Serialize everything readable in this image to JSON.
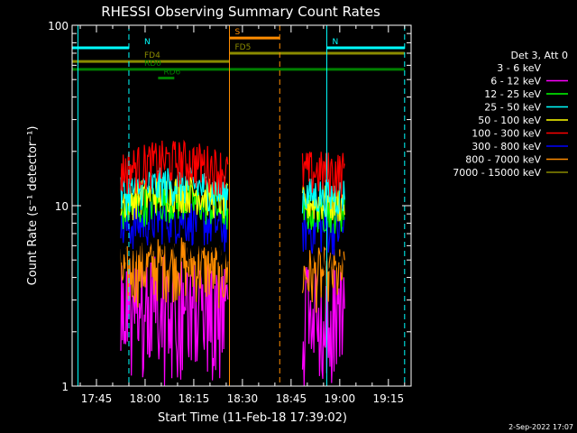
{
  "chart_data": {
    "type": "line",
    "title": "RHESSI Observing Summary Count Rates",
    "xlabel": "Start Time (11-Feb-18 17:39:02)",
    "ylabel": "Count Rate (s⁻¹ detector⁻¹)",
    "xticks": [
      "17:45",
      "18:00",
      "18:15",
      "18:30",
      "18:45",
      "19:00",
      "19:15"
    ],
    "xtick_minutes": [
      345,
      360,
      375,
      390,
      405,
      420,
      435
    ],
    "xlim_minutes": [
      337.5,
      442.0
    ],
    "yscale": "log",
    "ylim": [
      1,
      100
    ],
    "yticks": [
      {
        "value": 1,
        "label": "1"
      },
      {
        "value": 10,
        "label": "10"
      },
      {
        "value": 100,
        "label": "100"
      }
    ],
    "legend": {
      "placement": "right",
      "header": "Det 3, Att 0",
      "entries": [
        {
          "label": "3 - 6 keV",
          "color": "#000000"
        },
        {
          "label": "6 - 12 keV",
          "color": "#ff00ff"
        },
        {
          "label": "12 - 25 keV",
          "color": "#00ff00"
        },
        {
          "label": "25 - 50 keV",
          "color": "#00ffff"
        },
        {
          "label": "50 - 100 keV",
          "color": "#ffff00"
        },
        {
          "label": "100 - 300 keV",
          "color": "#ff0000"
        },
        {
          "label": "300 - 800 keV",
          "color": "#0000ff"
        },
        {
          "label": "800 - 7000 keV",
          "color": "#ff8c00"
        },
        {
          "label": "7000 - 15000 keV",
          "color": "#8b8b00"
        }
      ]
    },
    "segments": [
      {
        "start_min": 352.5,
        "end_min": 385.7
      },
      {
        "start_min": 408.5,
        "end_min": 421.5
      }
    ],
    "series": [
      {
        "name": "6 - 12 keV",
        "color": "#ff00ff",
        "level": 3.0,
        "spread": 0.55,
        "pulses": true
      },
      {
        "name": "800 - 7000 keV",
        "color": "#ff8c00",
        "level": 4.2,
        "spread": 0.4
      },
      {
        "name": "3 - 6 keV",
        "color": "#000000",
        "level": 5.8,
        "spread": 0.25
      },
      {
        "name": "300 - 800 keV",
        "color": "#0000ff",
        "level": 7.5,
        "spread": 0.3
      },
      {
        "name": "12 - 25 keV",
        "color": "#00ff00",
        "level": 9.3,
        "spread": 0.25
      },
      {
        "name": "50 - 100 keV",
        "color": "#ffff00",
        "level": 10.5,
        "spread": 0.25
      },
      {
        "name": "25 - 50 keV",
        "color": "#00ffff",
        "level": 11.5,
        "spread": 0.25
      },
      {
        "name": "100 - 300 keV",
        "color": "#ff0000",
        "level": 15.5,
        "spread": 0.3
      }
    ],
    "flags": [
      {
        "label": "N",
        "color": "#00ffff",
        "level": 75,
        "start_min": 337.5,
        "end_min": 355.0
      },
      {
        "label": "N",
        "color": "#00ffff",
        "level": 75,
        "start_min": 416.0,
        "end_min": 440.0
      },
      {
        "label": "S",
        "color": "#ff8c00",
        "level": 85,
        "start_min": 386.0,
        "end_min": 401.5
      },
      {
        "label": "FD4",
        "color": "#8b8b00",
        "level": 63,
        "start_min": 337.5,
        "end_min": 386.0
      },
      {
        "label": "FD5",
        "color": "#8b8b00",
        "level": 70,
        "start_min": 386.0,
        "end_min": 440.0
      },
      {
        "label": "RD0",
        "color": "#008000",
        "level": 57,
        "start_min": 337.5,
        "end_min": 440.0
      },
      {
        "label": "RD6",
        "color": "#008000",
        "level": 51,
        "start_min": 364.0,
        "end_min": 369.0
      }
    ],
    "vlines": [
      {
        "minute": 339.3,
        "color": "#00ffff",
        "style": "solid"
      },
      {
        "minute": 355.0,
        "color": "#00ffff",
        "style": "dashed"
      },
      {
        "minute": 386.0,
        "color": "#ff8c00",
        "style": "solid"
      },
      {
        "minute": 401.5,
        "color": "#ff8c00",
        "style": "dashed"
      },
      {
        "minute": 416.0,
        "color": "#00ffff",
        "style": "solid"
      },
      {
        "minute": 440.0,
        "color": "#00ffff",
        "style": "dashed"
      }
    ]
  },
  "footer": {
    "date": "2-Sep-2022 17:07"
  }
}
